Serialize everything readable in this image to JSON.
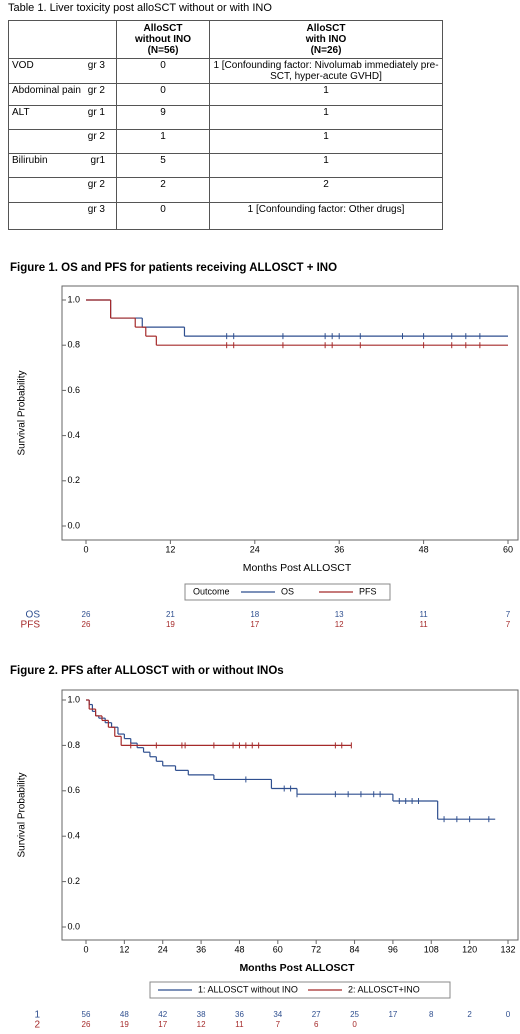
{
  "table": {
    "caption": "Table 1. Liver toxicity post alloSCT without or with INO",
    "header": [
      [
        "AlloSCT",
        "without INO",
        "(N=56)"
      ],
      [
        "AlloSCT",
        "with INO",
        "(N=26)"
      ]
    ],
    "rows": [
      [
        "VOD",
        "gr 3",
        "0",
        "1 [Confounding factor: Nivolumab immediately pre-SCT, hyper-acute GVHD]"
      ],
      [
        "Abdominal pain",
        "gr 2",
        "0",
        "1"
      ],
      [
        "ALT",
        "gr 1",
        "9",
        "1"
      ],
      [
        null,
        "gr 2",
        "1",
        "1"
      ],
      [
        "Bilirubin",
        "gr1",
        "5",
        "1"
      ],
      [
        null,
        "gr 2",
        "2",
        "2"
      ],
      [
        null,
        "gr 3",
        "0",
        "1 [Confounding factor: Other drugs]"
      ]
    ]
  },
  "chart_data": [
    {
      "type": "km",
      "title": "Figure 1. OS and PFS for patients receiving ALLOSCT + INO",
      "x_label": "Months  Post ALLOSCT",
      "y_label": "Survival Probability",
      "legend_title": "Outcome",
      "xlim": [
        0,
        60
      ],
      "xticks": [
        0,
        12,
        24,
        36,
        48,
        60
      ],
      "ylim": [
        0,
        1
      ],
      "yticks": [
        {
          "value": 0,
          "label": "0.0"
        },
        0.2,
        0.4,
        0.6,
        0.8,
        {
          "value": 1,
          "label": "1.0"
        }
      ],
      "series": [
        {
          "name": "OS",
          "risk_label": "OS",
          "color": "#2f4f8f",
          "times": [
            0,
            3.5,
            8,
            14
          ],
          "survival": [
            1,
            0.92,
            0.88,
            0.84
          ],
          "end": 60,
          "censored": [
            20,
            21,
            28,
            34,
            35,
            36,
            39,
            45,
            48,
            52,
            54,
            56
          ],
          "at_risk": [
            26,
            21,
            18,
            13,
            11,
            7
          ]
        },
        {
          "name": "PFS",
          "risk_label": "PFS",
          "color": "#a52a2a",
          "times": [
            0,
            3.5,
            7,
            8.5,
            10
          ],
          "survival": [
            1,
            0.92,
            0.88,
            0.84,
            0.8
          ],
          "end": 60,
          "censored": [
            20,
            21,
            28,
            34,
            35,
            39,
            48,
            52,
            54,
            56
          ],
          "at_risk": [
            26,
            19,
            17,
            12,
            11,
            7
          ]
        }
      ]
    },
    {
      "type": "km",
      "title": "Figure 2. PFS after ALLOSCT with or without INOs",
      "x_label": "Months Post ALLOSCT",
      "y_label": "Survival Probability",
      "xlim": [
        0,
        132
      ],
      "xticks": [
        0,
        12,
        24,
        36,
        48,
        60,
        72,
        84,
        96,
        108,
        120,
        132
      ],
      "ylim": [
        0,
        1
      ],
      "yticks": [
        {
          "value": 0,
          "label": "0.0"
        },
        0.2,
        0.4,
        0.6,
        0.8,
        {
          "value": 1,
          "label": "1.0"
        }
      ],
      "series": [
        {
          "name": "1: ALLOSCT without INO",
          "risk_label": "1",
          "color": "#2f4f8f",
          "times": [
            0,
            1,
            2,
            3,
            4,
            6,
            8,
            10,
            12,
            14,
            16,
            18,
            20,
            22,
            24,
            28,
            32,
            40,
            58,
            66,
            96,
            110
          ],
          "survival": [
            1,
            0.98,
            0.95,
            0.93,
            0.92,
            0.9,
            0.88,
            0.85,
            0.83,
            0.81,
            0.79,
            0.77,
            0.75,
            0.73,
            0.71,
            0.69,
            0.67,
            0.65,
            0.61,
            0.585,
            0.555,
            0.475
          ],
          "end": 128,
          "censored": [
            50,
            62,
            64,
            66,
            78,
            82,
            86,
            90,
            92,
            98,
            100,
            102,
            104,
            112,
            116,
            120,
            126
          ],
          "at_risk": [
            56,
            48,
            42,
            38,
            36,
            34,
            27,
            25,
            17,
            8,
            2,
            0
          ]
        },
        {
          "name": "2: ALLOSCT+INO",
          "risk_label": "2",
          "color": "#a52a2a",
          "times": [
            0,
            1,
            3,
            5,
            7,
            9,
            11
          ],
          "survival": [
            1,
            0.96,
            0.93,
            0.91,
            0.88,
            0.84,
            0.8
          ],
          "end": 83,
          "censored": [
            14,
            22,
            30,
            31,
            40,
            46,
            48,
            50,
            52,
            54,
            78,
            80,
            83
          ],
          "at_risk": [
            26,
            19,
            17,
            12,
            11,
            7,
            6,
            0
          ]
        }
      ]
    }
  ]
}
